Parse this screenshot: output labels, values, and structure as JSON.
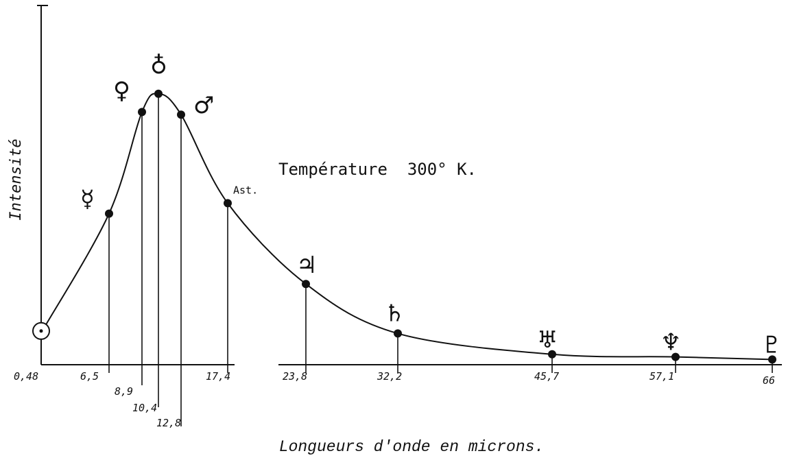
{
  "chart_data": {
    "type": "line",
    "ylabel": "Intensité",
    "xlabel": "Longueurs d'onde en microns.",
    "annotation": "Température  300° K.",
    "grid": false,
    "series": [
      {
        "points": [
          {
            "x": 0.48,
            "y": 0.14,
            "label": "0,48",
            "symbol": "☉",
            "symbol_name": "sun-icon"
          },
          {
            "x": 6.5,
            "y": 0.58,
            "label": "6,5",
            "symbol": "☿",
            "symbol_name": "mercury-icon"
          },
          {
            "x": 8.9,
            "y": 0.97,
            "label": "8,9",
            "symbol": "♀",
            "symbol_name": "venus-icon"
          },
          {
            "x": 10.4,
            "y": 1.04,
            "label": "10,4",
            "symbol": "♁",
            "symbol_name": "earth-icon"
          },
          {
            "x": 12.8,
            "y": 0.96,
            "label": "12,8",
            "symbol": "♂",
            "symbol_name": "mars-icon"
          },
          {
            "x": 17.4,
            "y": 0.62,
            "label": "17,4",
            "symbol": "Ast.",
            "symbol_name": "asteroids-label"
          },
          {
            "x": 23.8,
            "y": 0.31,
            "label": "23,8",
            "symbol": "♃",
            "symbol_name": "jupiter-icon"
          },
          {
            "x": 32.2,
            "y": 0.12,
            "label": "32,2",
            "symbol": "♄",
            "symbol_name": "saturn-icon"
          },
          {
            "x": 45.7,
            "y": 0.04,
            "label": "45,7",
            "symbol": "♅",
            "symbol_name": "uranus-icon"
          },
          {
            "x": 57.1,
            "y": 0.03,
            "label": "57,1",
            "symbol": "♆",
            "symbol_name": "neptune-icon"
          },
          {
            "x": 66,
            "y": 0.02,
            "label": "66",
            "symbol": "♇",
            "symbol_name": "pluto-icon"
          }
        ]
      }
    ]
  }
}
